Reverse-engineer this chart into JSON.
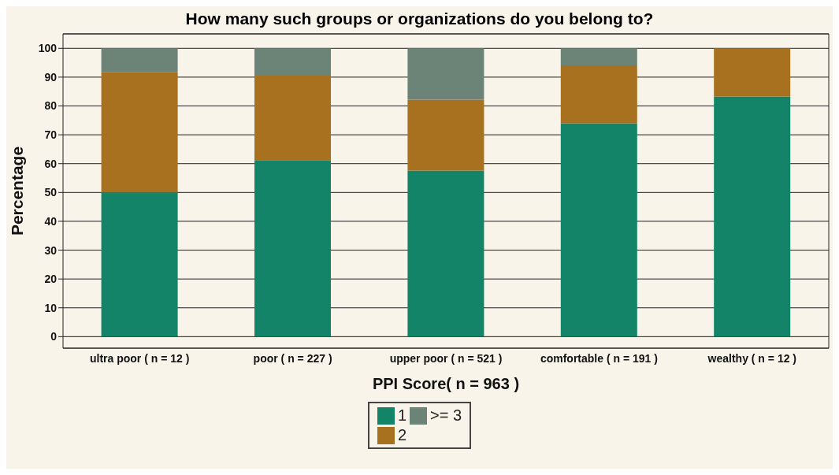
{
  "chart_data": {
    "type": "bar",
    "stacked": true,
    "title": "How many such groups or organizations do you belong to?",
    "xlabel": "PPI Score( n = 963 )",
    "ylabel": "Percentage",
    "categories": [
      "ultra poor ( n =  12 )",
      "poor ( n =  227 )",
      "upper poor ( n =  521 )",
      "comfortable ( n =  191 )",
      "wealthy ( n =  12 )"
    ],
    "series": [
      {
        "name": "1",
        "color": "#138468",
        "values": [
          50,
          61.2,
          57.6,
          74.0,
          83.3
        ]
      },
      {
        "name": "2",
        "color": "#a8711f",
        "values": [
          41.7,
          29.3,
          24.6,
          20.1,
          16.7
        ]
      },
      {
        "name": ">= 3",
        "color": "#6c8478",
        "values": [
          8.3,
          9.5,
          17.8,
          5.9,
          null
        ]
      }
    ],
    "ylim": [
      -4,
      105
    ],
    "yticks": [
      0,
      10,
      20,
      30,
      40,
      50,
      60,
      70,
      80,
      90,
      100
    ],
    "grid": "y",
    "legend": "bottom"
  }
}
